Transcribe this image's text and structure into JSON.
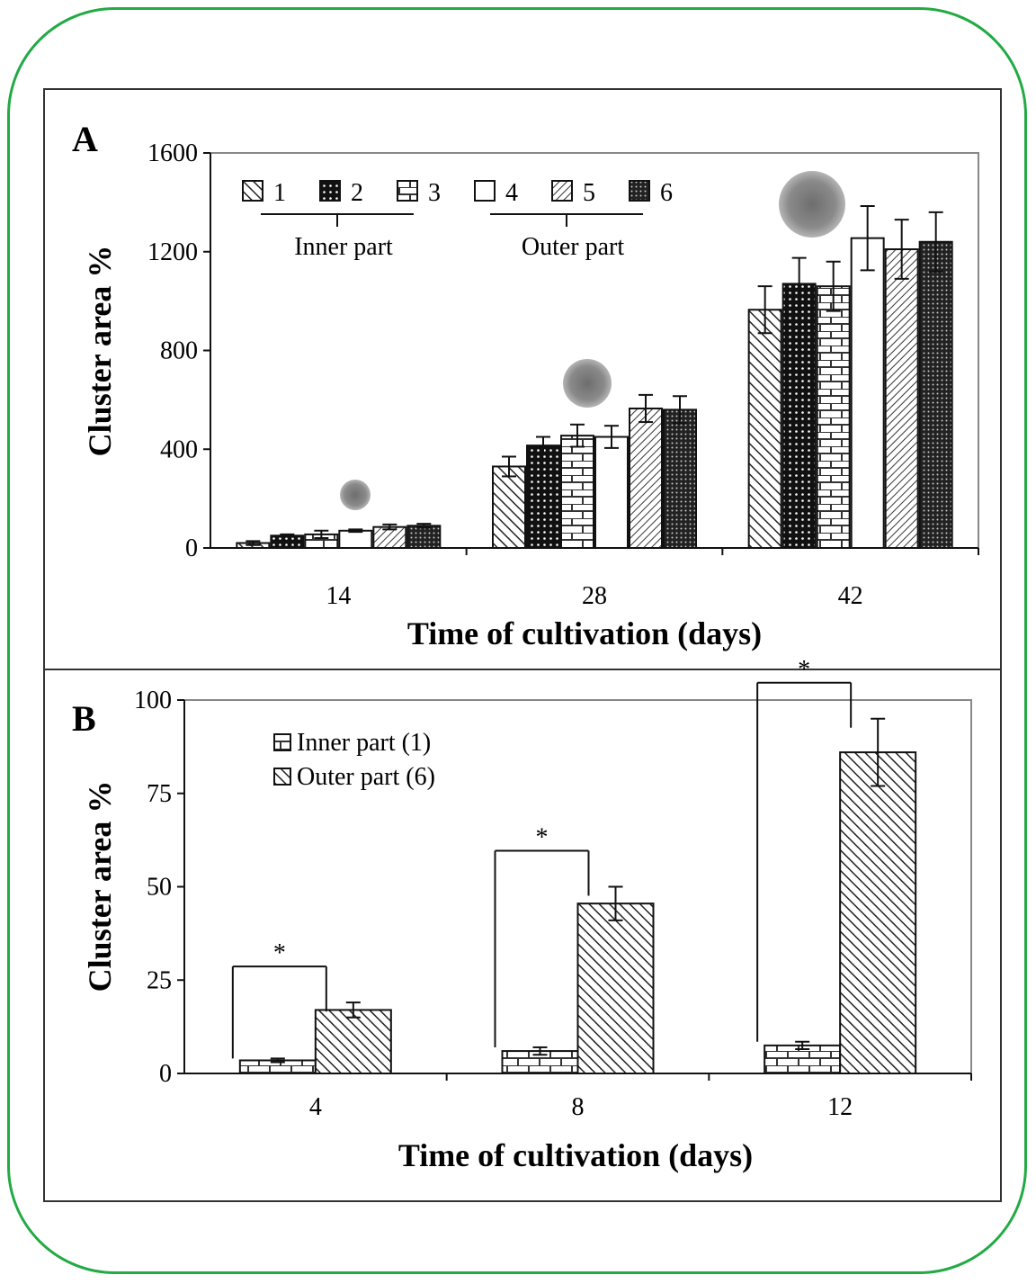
{
  "chart_data": [
    {
      "panel_label": "A",
      "type": "bar",
      "categories": [
        "14",
        "28",
        "42"
      ],
      "xlabel": "Time of cultivation (days)",
      "ylabel": "Cluster area %",
      "ylim": [
        0,
        1600
      ],
      "yticks": [
        "0",
        "400",
        "800",
        "1200",
        "1600"
      ],
      "legend_placement": "top-left",
      "group_labels": [
        "Inner part",
        "Outer part"
      ],
      "series": [
        {
          "name": "1",
          "pattern": "hatch-diagonal",
          "values": [
            20,
            330,
            965
          ],
          "errors": [
            8,
            40,
            95
          ]
        },
        {
          "name": "2",
          "pattern": "dots-dark",
          "values": [
            50,
            415,
            1070
          ],
          "errors": [
            5,
            35,
            105
          ]
        },
        {
          "name": "3",
          "pattern": "brick",
          "values": [
            55,
            455,
            1060
          ],
          "errors": [
            15,
            45,
            100
          ]
        },
        {
          "name": "4",
          "pattern": "empty",
          "values": [
            70,
            450,
            1255
          ],
          "errors": [
            5,
            45,
            130
          ]
        },
        {
          "name": "5",
          "pattern": "hatch-diagonal-dense",
          "values": [
            85,
            565,
            1210
          ],
          "errors": [
            10,
            55,
            120
          ]
        },
        {
          "name": "6",
          "pattern": "dots-dense",
          "values": [
            90,
            560,
            1240
          ],
          "errors": [
            8,
            55,
            120
          ]
        }
      ]
    },
    {
      "panel_label": "B",
      "type": "bar",
      "categories": [
        "4",
        "8",
        "12"
      ],
      "xlabel": "Time of cultivation (days)",
      "ylabel": "Cluster area %",
      "ylim": [
        0,
        100
      ],
      "yticks": [
        "0",
        "25",
        "50",
        "75",
        "100"
      ],
      "legend_placement": "top-left",
      "significance_marker": "*",
      "series": [
        {
          "name": "Inner part (1)",
          "pattern": "brick",
          "values": [
            3.5,
            6,
            7.5
          ],
          "errors": [
            0.5,
            1,
            1
          ]
        },
        {
          "name": "Outer part (6)",
          "pattern": "hatch-diagonal",
          "values": [
            17,
            45.5,
            86
          ],
          "errors": [
            2,
            4.5,
            9
          ]
        }
      ]
    }
  ]
}
